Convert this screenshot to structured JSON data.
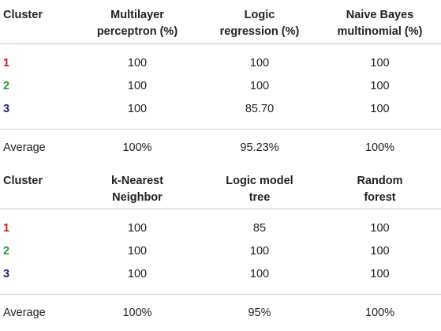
{
  "tables": [
    {
      "headers": {
        "cluster": "Cluster",
        "a_line1": "Multilayer",
        "a_line2": "perceptron (%)",
        "b_line1": "Logic",
        "b_line2": "regression (%)",
        "c_line1": "Naive Bayes",
        "c_line2": "multinomial (%)"
      },
      "rows": [
        {
          "cluster": "1",
          "a": "100",
          "b": "100",
          "c": "100"
        },
        {
          "cluster": "2",
          "a": "100",
          "b": "100",
          "c": "100"
        },
        {
          "cluster": "3",
          "a": "100",
          "b": "85.70",
          "c": "100"
        }
      ],
      "average": {
        "label": "Average",
        "a": "100%",
        "b": "95.23%",
        "c": "100%"
      }
    },
    {
      "headers": {
        "cluster": "Cluster",
        "a_line1": "k-Nearest",
        "a_line2": "Neighbor",
        "b_line1": "Logic model",
        "b_line2": "tree",
        "c_line1": "Random",
        "c_line2": "forest"
      },
      "rows": [
        {
          "cluster": "1",
          "a": "100",
          "b": "85",
          "c": "100"
        },
        {
          "cluster": "2",
          "a": "100",
          "b": "100",
          "c": "100"
        },
        {
          "cluster": "3",
          "a": "100",
          "b": "100",
          "c": "100"
        }
      ],
      "average": {
        "label": "Average",
        "a": "100%",
        "b": "95%",
        "c": "100%"
      }
    }
  ],
  "colors": {
    "cluster_1": "#d0191e",
    "cluster_2": "#2a9a3a",
    "cluster_3": "#1e2a78",
    "rules": "#c8c8c8"
  }
}
